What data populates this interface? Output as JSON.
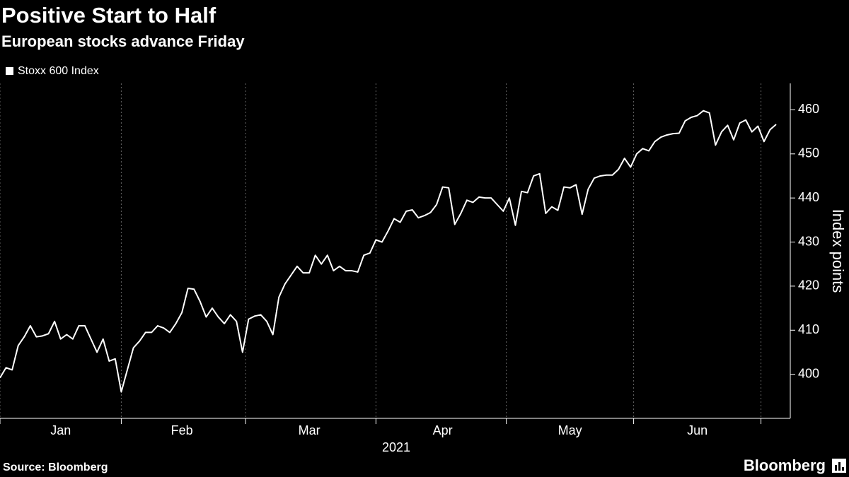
{
  "chart_data": {
    "type": "line",
    "title": "Positive Start to Half",
    "subtitle": "European stocks advance Friday",
    "source": "Source: Bloomberg",
    "brand": "Bloomberg",
    "x_label": "2021",
    "y_label": "Index points",
    "grid": true,
    "categories": [
      null,
      null,
      null,
      null,
      null,
      null,
      null,
      null,
      null,
      null,
      "Jan",
      null,
      null,
      null,
      null,
      null,
      null,
      null,
      null,
      null,
      null,
      null,
      null,
      null,
      null,
      null,
      null,
      null,
      null,
      null,
      "Feb",
      null,
      null,
      null,
      null,
      null,
      null,
      null,
      null,
      null,
      null,
      null,
      null,
      null,
      null,
      null,
      null,
      null,
      null,
      null,
      null,
      "Mar",
      null,
      null,
      null,
      null,
      null,
      null,
      null,
      null,
      null,
      null,
      null,
      null,
      null,
      null,
      null,
      null,
      null,
      null,
      null,
      null,
      null,
      "Apr",
      null,
      null,
      null,
      null,
      null,
      null,
      null,
      null,
      null,
      null,
      null,
      null,
      null,
      null,
      null,
      null,
      null,
      null,
      null,
      null,
      "May",
      null,
      null,
      null,
      null,
      null,
      null,
      null,
      null,
      null,
      null,
      null,
      null,
      null,
      null,
      null,
      null,
      null,
      null,
      null,
      null,
      "Jun",
      null,
      null,
      null,
      null,
      null,
      null,
      null,
      null,
      null,
      null,
      null,
      null,
      null
    ],
    "series": [
      {
        "name": "Stoxx 600 Index",
        "color": "#ffffff",
        "values": [
          399.2,
          401.5,
          401,
          406.5,
          408.5,
          411,
          408.5,
          408.7,
          409.2,
          412,
          408,
          409,
          408,
          411,
          411,
          408,
          405,
          408,
          403,
          403.5,
          396,
          401,
          406,
          407.5,
          409.5,
          409.5,
          411,
          410.5,
          409.5,
          411.5,
          414,
          419.5,
          419.3,
          416.5,
          413,
          415,
          413,
          411.5,
          413.5,
          412,
          405,
          412.5,
          413.2,
          413.5,
          412,
          409,
          417.5,
          420.5,
          422.5,
          424.5,
          423,
          423,
          427,
          425,
          427,
          423.5,
          424.5,
          423.5,
          423.5,
          423.2,
          427,
          427.5,
          430.5,
          430,
          432.5,
          435.3,
          434.5,
          437,
          437.3,
          435.5,
          436,
          436.7,
          438.5,
          442.5,
          442.3,
          434,
          436.5,
          439.5,
          439,
          440.2,
          440,
          440,
          438.5,
          437,
          440,
          433.8,
          441.5,
          441.2,
          445,
          445.5,
          436.5,
          438,
          437.2,
          442.5,
          442.3,
          443,
          436.3,
          442,
          444.5,
          445,
          445.2,
          445.2,
          446.5,
          449,
          447,
          450,
          451.2,
          450.7,
          452.8,
          453.8,
          454.3,
          454.6,
          454.7,
          457.5,
          458.3,
          458.7,
          459.8,
          459.3,
          452,
          455,
          456.5,
          453.2,
          457,
          457.7,
          455,
          456.3,
          452.8,
          455.5,
          456.7
        ]
      }
    ],
    "ylim": [
      390,
      466
    ],
    "yticks": [
      400,
      410,
      420,
      430,
      440,
      450,
      460
    ]
  }
}
